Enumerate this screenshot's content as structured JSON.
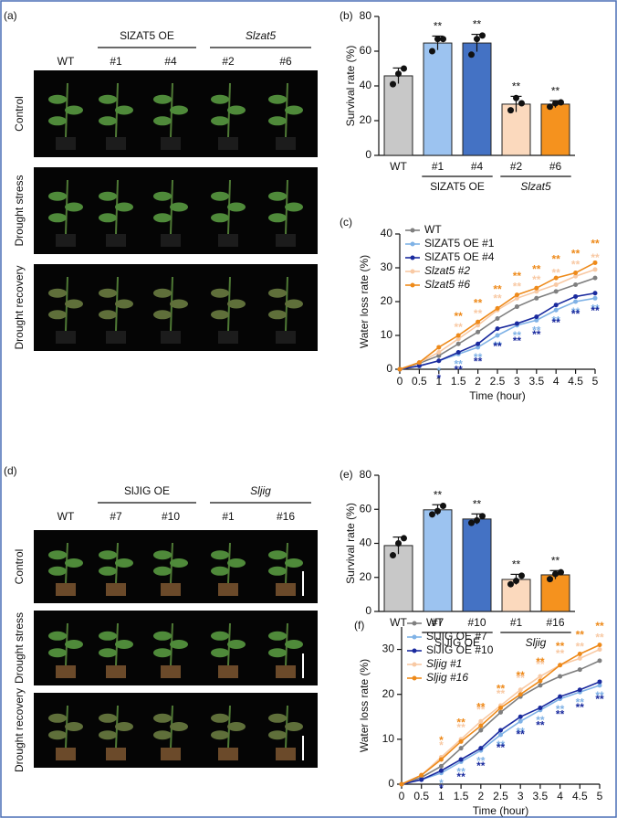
{
  "photo_panels": [
    {
      "label": "(a)",
      "columns": [
        "WT",
        "#1",
        "#4",
        "#2",
        "#6"
      ],
      "groups": [
        {
          "name": "SlZAT5 OE",
          "span": [
            1,
            2
          ]
        },
        {
          "name": "Slzat5",
          "span": [
            3,
            4
          ],
          "italic": true
        }
      ],
      "rows": [
        "Control",
        "Drought stress",
        "Drought recovery"
      ]
    },
    {
      "label": "(d)",
      "columns": [
        "WT",
        "#7",
        "#10",
        "#1",
        "#16"
      ],
      "groups": [
        {
          "name": "SlJIG OE",
          "span": [
            1,
            2
          ]
        },
        {
          "name": "Sljig",
          "span": [
            3,
            4
          ],
          "italic": true
        }
      ],
      "rows": [
        "Control",
        "Drought stress",
        "Drought recovery"
      ]
    }
  ],
  "chart_data": [
    {
      "type": "bar",
      "panel_label": "(b)",
      "y_label": "Survival rate (%)",
      "categories": [
        "WT",
        "#1",
        "#4",
        "#2",
        "#6"
      ],
      "values": [
        45.8,
        64.7,
        64.7,
        29.5,
        29.5
      ],
      "errors": [
        4.5,
        4,
        5,
        4.5,
        2
      ],
      "points": [
        [
          41,
          47,
          50
        ],
        [
          60,
          67,
          67
        ],
        [
          58,
          67,
          69
        ],
        [
          26,
          33,
          30
        ],
        [
          28,
          30,
          30.5
        ]
      ],
      "colors": [
        "#c8c8c8",
        "#9cc3f0",
        "#4472c4",
        "#fbd9bd",
        "#f5921e"
      ],
      "significance": [
        null,
        "**",
        "**",
        "**",
        "**"
      ],
      "groups": [
        {
          "name": "SlZAT5 OE",
          "span": [
            1,
            2
          ]
        },
        {
          "name": "Slzat5",
          "span": [
            3,
            4
          ],
          "italic": true
        }
      ],
      "ylim": [
        0,
        80
      ],
      "yticks": [
        0,
        20,
        40,
        60,
        80
      ]
    },
    {
      "type": "line",
      "panel_label": "(c)",
      "y_label": "Water loss rate (%)",
      "x_label": "Time (hour)",
      "x": [
        0,
        0.5,
        1,
        1.5,
        2,
        2.5,
        3,
        3.5,
        4,
        4.5,
        5
      ],
      "xlim": [
        0,
        5
      ],
      "xticks": [
        0,
        0.5,
        1,
        1.5,
        2,
        2.5,
        3,
        3.5,
        4,
        4.5,
        5
      ],
      "ylim": [
        0,
        40
      ],
      "yticks": [
        0,
        10,
        20,
        30,
        40
      ],
      "legend": "top-left",
      "series": [
        {
          "name": "WT",
          "color": "#7f7f7f",
          "values": [
            0,
            1.8,
            4,
            7.5,
            11,
            15,
            18.5,
            21,
            23,
            25,
            27
          ]
        },
        {
          "name": "SlZAT5 OE #1",
          "color": "#7fb2e6",
          "values": [
            0,
            1,
            2.5,
            4.5,
            6.5,
            10,
            13,
            14.5,
            17.5,
            20,
            21
          ],
          "significance": [
            null,
            null,
            "*",
            "**",
            "**",
            "**",
            "**",
            "**",
            "**",
            "**",
            "**"
          ]
        },
        {
          "name": "SlZAT5 OE #4",
          "color": "#1a2a9e",
          "values": [
            0,
            1,
            2.5,
            5,
            7.5,
            12,
            13.5,
            15.5,
            19,
            21.5,
            22.5
          ],
          "significance": [
            null,
            null,
            "*",
            "**",
            "**",
            "**",
            "**",
            "**",
            "**",
            "**",
            "**"
          ]
        },
        {
          "name": "Slzat5 #2",
          "italic": true,
          "color": "#f8c9a4",
          "values": [
            0,
            2,
            5,
            9,
            13,
            17.5,
            21,
            23,
            25,
            27.5,
            29.5
          ],
          "significance": [
            null,
            null,
            null,
            "**",
            "**",
            "**",
            "**",
            "**",
            "**",
            "**",
            "**"
          ]
        },
        {
          "name": "Slzat5 #6",
          "italic": true,
          "color": "#ee8a1a",
          "values": [
            0,
            2,
            6.5,
            10,
            14,
            18,
            22,
            24,
            27,
            28.5,
            31.5
          ],
          "significance": [
            null,
            null,
            null,
            "**",
            "**",
            "**",
            "**",
            "**",
            "**",
            "**",
            "**"
          ]
        }
      ]
    },
    {
      "type": "bar",
      "panel_label": "(e)",
      "y_label": "Survival rate (%)",
      "categories": [
        "WT",
        "#7",
        "#10",
        "#1",
        "#16"
      ],
      "values": [
        38.7,
        59.7,
        54.3,
        18.8,
        21.5
      ],
      "errors": [
        5,
        3,
        3,
        3,
        2.5
      ],
      "points": [
        [
          33,
          40,
          43
        ],
        [
          57,
          59,
          62
        ],
        [
          52,
          53.5,
          56
        ],
        [
          16,
          18,
          21
        ],
        [
          19,
          22,
          23
        ]
      ],
      "colors": [
        "#c8c8c8",
        "#9cc3f0",
        "#4472c4",
        "#fbd9bd",
        "#f5921e"
      ],
      "significance": [
        null,
        "**",
        "**",
        "**",
        "**"
      ],
      "groups": [
        {
          "name": "SlJIG OE",
          "span": [
            1,
            2
          ]
        },
        {
          "name": "Sljig",
          "span": [
            3,
            4
          ],
          "italic": true
        }
      ],
      "ylim": [
        0,
        80
      ],
      "yticks": [
        0,
        20,
        40,
        60,
        80
      ]
    },
    {
      "type": "line",
      "panel_label": "(f)",
      "y_label": "Water loss rate (%)",
      "x_label": "Time (hour)",
      "x": [
        0,
        0.5,
        1,
        1.5,
        2,
        2.5,
        3,
        3.5,
        4,
        4.5,
        5
      ],
      "xlim": [
        0,
        5
      ],
      "xticks": [
        0,
        0.5,
        1,
        1.5,
        2,
        2.5,
        3,
        3.5,
        4,
        4.5,
        5
      ],
      "ylim": [
        0,
        35
      ],
      "yticks": [
        0,
        10,
        20,
        30
      ],
      "legend": "top-left",
      "series": [
        {
          "name": "WT",
          "color": "#7f7f7f",
          "values": [
            0,
            1.5,
            4,
            8,
            12,
            16,
            19.5,
            22,
            24,
            25.5,
            27.5
          ]
        },
        {
          "name": "SlJIG OE #7",
          "color": "#7fb2e6",
          "values": [
            0,
            1,
            2.5,
            5,
            7.5,
            11,
            14,
            16.5,
            19,
            20.5,
            22
          ],
          "significance": [
            null,
            null,
            "*",
            "**",
            "**",
            "**",
            "**",
            "**",
            "**",
            "**",
            "**"
          ]
        },
        {
          "name": "SlJIG OE #10",
          "color": "#1a2a9e",
          "values": [
            0,
            1,
            3,
            5.5,
            8,
            12,
            15,
            17,
            19.5,
            21,
            22.8
          ],
          "significance": [
            null,
            null,
            "*",
            "**",
            "**",
            "**",
            "**",
            "**",
            "**",
            "**",
            "**"
          ]
        },
        {
          "name": "Sljig #1",
          "italic": true,
          "color": "#f8c9a4",
          "values": [
            0,
            2,
            6,
            10,
            14,
            17.5,
            21,
            24,
            26.5,
            28,
            30
          ],
          "significance": [
            null,
            null,
            "*",
            "**",
            "**",
            "**",
            "**",
            "**",
            "**",
            "**",
            "**"
          ]
        },
        {
          "name": "Sljig #16",
          "italic": true,
          "color": "#ee8a1a",
          "values": [
            0,
            2,
            5.5,
            9.5,
            13,
            17,
            20,
            23,
            26.5,
            29,
            31
          ],
          "significance": [
            null,
            null,
            "*",
            "**",
            "**",
            "**",
            "**",
            "**",
            "**",
            "**",
            "**"
          ]
        }
      ]
    }
  ]
}
